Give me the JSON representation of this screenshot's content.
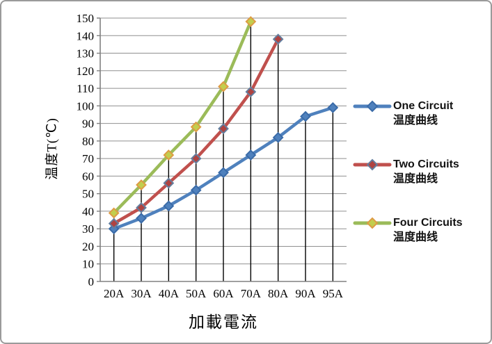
{
  "window": {
    "background": "#ffffff",
    "frame_border_color": "#9a9a9a"
  },
  "chart_data": {
    "type": "line",
    "title": "",
    "xlabel": "加載電流",
    "ylabel": "温度T(℃)",
    "categories": [
      "20A",
      "30A",
      "40A",
      "50A",
      "60A",
      "70A",
      "80A",
      "90A",
      "95A"
    ],
    "series": [
      {
        "name": "One Circuit 温度曲线",
        "legend_en": "One Circuit",
        "legend_cjk": "温度曲线",
        "color": "#4F81BD",
        "marker_fill": "#4F81BD",
        "marker_stroke": "#3A6BA8",
        "values": [
          30,
          36,
          43,
          52,
          62,
          72,
          82,
          94,
          99
        ]
      },
      {
        "name": "Two Circuits 温度曲线",
        "legend_en": "Two Circuits",
        "legend_cjk": "温度曲线",
        "color": "#C0504D",
        "marker_fill": "#AF4341",
        "marker_stroke": "#647E9E",
        "values": [
          33,
          42,
          56,
          70,
          87,
          108,
          138
        ]
      },
      {
        "name": "Four Circuits 温度曲线",
        "legend_en": "Four Circuits",
        "legend_cjk": "温度曲线",
        "color": "#9BBB59",
        "marker_fill": "#C2CE4E",
        "marker_stroke": "#DE9B44",
        "values": [
          39,
          55,
          72,
          88,
          111,
          148
        ]
      }
    ],
    "ylim": [
      0,
      150
    ],
    "ytick_step": 10,
    "grid": "horizontal",
    "drop_lines": true,
    "legend_position": "right",
    "gridline_color": "#8F8F8F",
    "axis_color": "#808080",
    "drop_line_color": "#000000",
    "tick_label_color": "#000000"
  }
}
